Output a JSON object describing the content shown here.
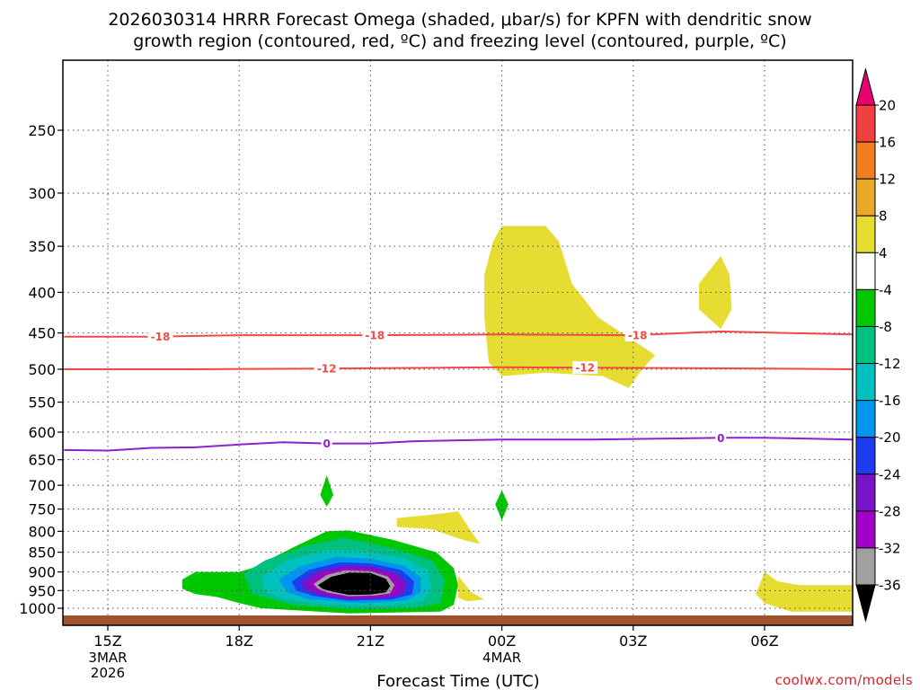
{
  "chart_data": {
    "type": "heatmap",
    "title_lines": [
      "2026030314 HRRR Forecast Omega (shaded, μbar/s) for KPFN with dendritic snow",
      "growth region (contoured, red, ºC) and freezing level (contoured, purple, ºC)"
    ],
    "xlabel": "Forecast Time (UTC)",
    "x_ticks": [
      {
        "label": "15Z",
        "hour": 15,
        "date": [
          "3MAR",
          "2026"
        ]
      },
      {
        "label": "18Z",
        "hour": 18
      },
      {
        "label": "21Z",
        "hour": 21
      },
      {
        "label": "00Z",
        "hour": 24,
        "date": [
          "4MAR"
        ]
      },
      {
        "label": "03Z",
        "hour": 27
      },
      {
        "label": "06Z",
        "hour": 30
      }
    ],
    "xlim": [
      14,
      32
    ],
    "y_ticks": [
      250,
      300,
      350,
      400,
      450,
      500,
      550,
      600,
      650,
      700,
      750,
      800,
      850,
      900,
      950,
      1000
    ],
    "ylim_hPa": [
      1030,
      200
    ],
    "colorbar": {
      "labels": [
        "20",
        "16",
        "12",
        "8",
        "4",
        "-4",
        "-8",
        "-12",
        "-16",
        "-20",
        "-24",
        "-28",
        "-32",
        "-36"
      ],
      "colors": [
        "#e8006e",
        "#f04040",
        "#f07d1e",
        "#e8aa28",
        "#e6dc32",
        "#ffffff",
        "#00c800",
        "#00c080",
        "#00c0c0",
        "#0096f0",
        "#1e3cf0",
        "#7814c8",
        "#a000c8",
        "#a0a0a0",
        "#000000"
      ]
    },
    "contours": [
      {
        "value": -18,
        "label": "-18",
        "color": "#f04a45",
        "points": [
          [
            14,
            455
          ],
          [
            16,
            455
          ],
          [
            18,
            453
          ],
          [
            21,
            453
          ],
          [
            24,
            452
          ],
          [
            27,
            453
          ],
          [
            29,
            448
          ],
          [
            32,
            452
          ]
        ],
        "label_x": [
          16.2,
          21.1,
          27.1
        ]
      },
      {
        "value": -12,
        "label": "-12",
        "color": "#f04a45",
        "points": [
          [
            14,
            500
          ],
          [
            17,
            500
          ],
          [
            20,
            499
          ],
          [
            24,
            497
          ],
          [
            27,
            498
          ],
          [
            30,
            499
          ],
          [
            32,
            500
          ]
        ],
        "label_x": [
          20.0,
          25.9
        ]
      },
      {
        "value": 0,
        "label": "0",
        "color": "#9020c8",
        "points": [
          [
            14,
            632
          ],
          [
            15,
            633
          ],
          [
            16,
            628
          ],
          [
            17,
            627
          ],
          [
            18,
            622
          ],
          [
            19,
            618
          ],
          [
            20,
            620
          ],
          [
            21,
            620
          ],
          [
            22,
            616
          ],
          [
            24,
            613
          ],
          [
            26,
            613
          ],
          [
            27,
            612
          ],
          [
            29,
            610
          ],
          [
            30,
            610
          ],
          [
            32,
            613
          ]
        ],
        "label_x": [
          20.0,
          29.0
        ]
      }
    ],
    "omega_regions": [
      {
        "value_class": "4",
        "color": "#e6dc32",
        "points": [
          [
            24,
            330
          ],
          [
            25,
            330
          ],
          [
            25.3,
            345
          ],
          [
            25.6,
            390
          ],
          [
            26.2,
            430
          ],
          [
            27,
            460
          ],
          [
            27.5,
            480
          ],
          [
            27.2,
            500
          ],
          [
            26.9,
            528
          ],
          [
            26.3,
            510
          ],
          [
            25,
            505
          ],
          [
            24,
            510
          ],
          [
            23.7,
            490
          ],
          [
            23.6,
            430
          ],
          [
            23.6,
            380
          ],
          [
            23.8,
            345
          ]
        ]
      },
      {
        "value_class": "4",
        "color": "#e6dc32",
        "points": [
          [
            29.0,
            360
          ],
          [
            29.2,
            380
          ],
          [
            29.25,
            420
          ],
          [
            29.0,
            445
          ],
          [
            28.5,
            420
          ],
          [
            28.5,
            390
          ]
        ]
      },
      {
        "value_class": "4",
        "color": "#e6dc32",
        "points": [
          [
            21.6,
            770
          ],
          [
            22.6,
            760
          ],
          [
            23.0,
            755
          ],
          [
            23.3,
            800
          ],
          [
            23.5,
            830
          ],
          [
            23.1,
            820
          ],
          [
            22.4,
            795
          ],
          [
            21.6,
            790
          ]
        ]
      },
      {
        "value_class": "4",
        "color": "#e6dc32",
        "points": [
          [
            23.0,
            910
          ],
          [
            23.3,
            955
          ],
          [
            23.6,
            975
          ],
          [
            23.2,
            980
          ],
          [
            23.0,
            970
          ]
        ]
      },
      {
        "value_class": "4",
        "color": "#e6dc32",
        "points": [
          [
            30.0,
            900
          ],
          [
            30.3,
            925
          ],
          [
            30.8,
            935
          ],
          [
            32,
            935
          ],
          [
            32,
            1010
          ],
          [
            30.6,
            1010
          ],
          [
            30.0,
            985
          ],
          [
            29.8,
            960
          ]
        ]
      },
      {
        "value_class": "-4",
        "color": "#00c800",
        "points": [
          [
            20,
            680
          ],
          [
            20.15,
            720
          ],
          [
            20,
            745
          ],
          [
            19.85,
            720
          ]
        ]
      },
      {
        "value_class": "-4",
        "color": "#00c800",
        "points": [
          [
            24,
            710
          ],
          [
            24.15,
            740
          ],
          [
            24,
            775
          ],
          [
            23.85,
            740
          ]
        ]
      },
      {
        "value_class": "-4",
        "color": "#00c800",
        "points": [
          [
            16.7,
            920
          ],
          [
            17,
            900
          ],
          [
            18,
            900
          ],
          [
            18.3,
            890
          ],
          [
            19.2,
            840
          ],
          [
            20,
            800
          ],
          [
            20.5,
            798
          ],
          [
            21.5,
            820
          ],
          [
            22.5,
            850
          ],
          [
            22.9,
            890
          ],
          [
            23.0,
            935
          ],
          [
            22.9,
            990
          ],
          [
            22.6,
            1010
          ],
          [
            20.5,
            1015
          ],
          [
            18.5,
            1000
          ],
          [
            18,
            985
          ],
          [
            17.5,
            968
          ],
          [
            17,
            960
          ],
          [
            16.7,
            945
          ]
        ]
      },
      {
        "value_class": "-8",
        "color": "#00c080",
        "points": [
          [
            18.1,
            905
          ],
          [
            18.6,
            870
          ],
          [
            19.5,
            835
          ],
          [
            20.4,
            815
          ],
          [
            21.5,
            840
          ],
          [
            22.4,
            870
          ],
          [
            22.7,
            920
          ],
          [
            22.6,
            985
          ],
          [
            22.0,
            1000
          ],
          [
            20.5,
            1003
          ],
          [
            19.2,
            990
          ],
          [
            18.3,
            960
          ]
        ]
      },
      {
        "value_class": "-12",
        "color": "#00c0c0",
        "points": [
          [
            18.5,
            915
          ],
          [
            19.1,
            870
          ],
          [
            20,
            845
          ],
          [
            20.9,
            848
          ],
          [
            21.8,
            865
          ],
          [
            22.3,
            895
          ],
          [
            22.4,
            945
          ],
          [
            22.2,
            980
          ],
          [
            21.4,
            993
          ],
          [
            20,
            990
          ],
          [
            19,
            975
          ],
          [
            18.6,
            950
          ]
        ]
      },
      {
        "value_class": "-16",
        "color": "#0096f0",
        "points": [
          [
            18.9,
            920
          ],
          [
            19.4,
            885
          ],
          [
            20.2,
            862
          ],
          [
            21,
            866
          ],
          [
            21.8,
            885
          ],
          [
            22.15,
            915
          ],
          [
            22.15,
            955
          ],
          [
            21.8,
            978
          ],
          [
            20.8,
            985
          ],
          [
            19.6,
            975
          ],
          [
            19.1,
            955
          ]
        ]
      },
      {
        "value_class": "-20",
        "color": "#1e3cf0",
        "points": [
          [
            19.2,
            925
          ],
          [
            19.6,
            895
          ],
          [
            20.3,
            875
          ],
          [
            21,
            878
          ],
          [
            21.7,
            895
          ],
          [
            22.0,
            925
          ],
          [
            21.95,
            960
          ],
          [
            21.5,
            975
          ],
          [
            20.5,
            978
          ],
          [
            19.7,
            965
          ],
          [
            19.3,
            950
          ]
        ]
      },
      {
        "value_class": "-28",
        "color": "#7814c8",
        "points": [
          [
            19.4,
            928
          ],
          [
            19.8,
            898
          ],
          [
            20.4,
            884
          ],
          [
            21,
            886
          ],
          [
            21.6,
            903
          ],
          [
            21.85,
            930
          ],
          [
            21.75,
            962
          ],
          [
            21.3,
            972
          ],
          [
            20.5,
            975
          ],
          [
            19.8,
            962
          ],
          [
            19.5,
            948
          ]
        ]
      },
      {
        "value_class": "-32",
        "color": "#a000c8",
        "points": [
          [
            19.6,
            930
          ],
          [
            19.9,
            903
          ],
          [
            20.4,
            890
          ],
          [
            21,
            892
          ],
          [
            21.5,
            908
          ],
          [
            21.7,
            932
          ],
          [
            21.6,
            960
          ],
          [
            21.2,
            968
          ],
          [
            20.5,
            970
          ],
          [
            19.9,
            958
          ],
          [
            19.7,
            946
          ]
        ]
      },
      {
        "value_class": "-36",
        "color": "#a0a0a0",
        "points": [
          [
            19.7,
            932
          ],
          [
            20.0,
            908
          ],
          [
            20.4,
            896
          ],
          [
            21,
            898
          ],
          [
            21.4,
            912
          ],
          [
            21.55,
            935
          ],
          [
            21.45,
            958
          ],
          [
            21.1,
            964
          ],
          [
            20.5,
            966
          ],
          [
            20.0,
            955
          ],
          [
            19.8,
            945
          ]
        ]
      },
      {
        "value_class": "<-36",
        "color": "#000000",
        "points": [
          [
            19.8,
            935
          ],
          [
            20.1,
            913
          ],
          [
            20.5,
            902
          ],
          [
            21,
            903
          ],
          [
            21.35,
            918
          ],
          [
            21.45,
            938
          ],
          [
            21.35,
            955
          ],
          [
            21.0,
            961
          ],
          [
            20.5,
            962
          ],
          [
            20.1,
            952
          ],
          [
            19.9,
            945
          ]
        ]
      }
    ],
    "surface_color": "#a0522d",
    "grid": "dotted",
    "credit": "coolwx.com/models"
  }
}
